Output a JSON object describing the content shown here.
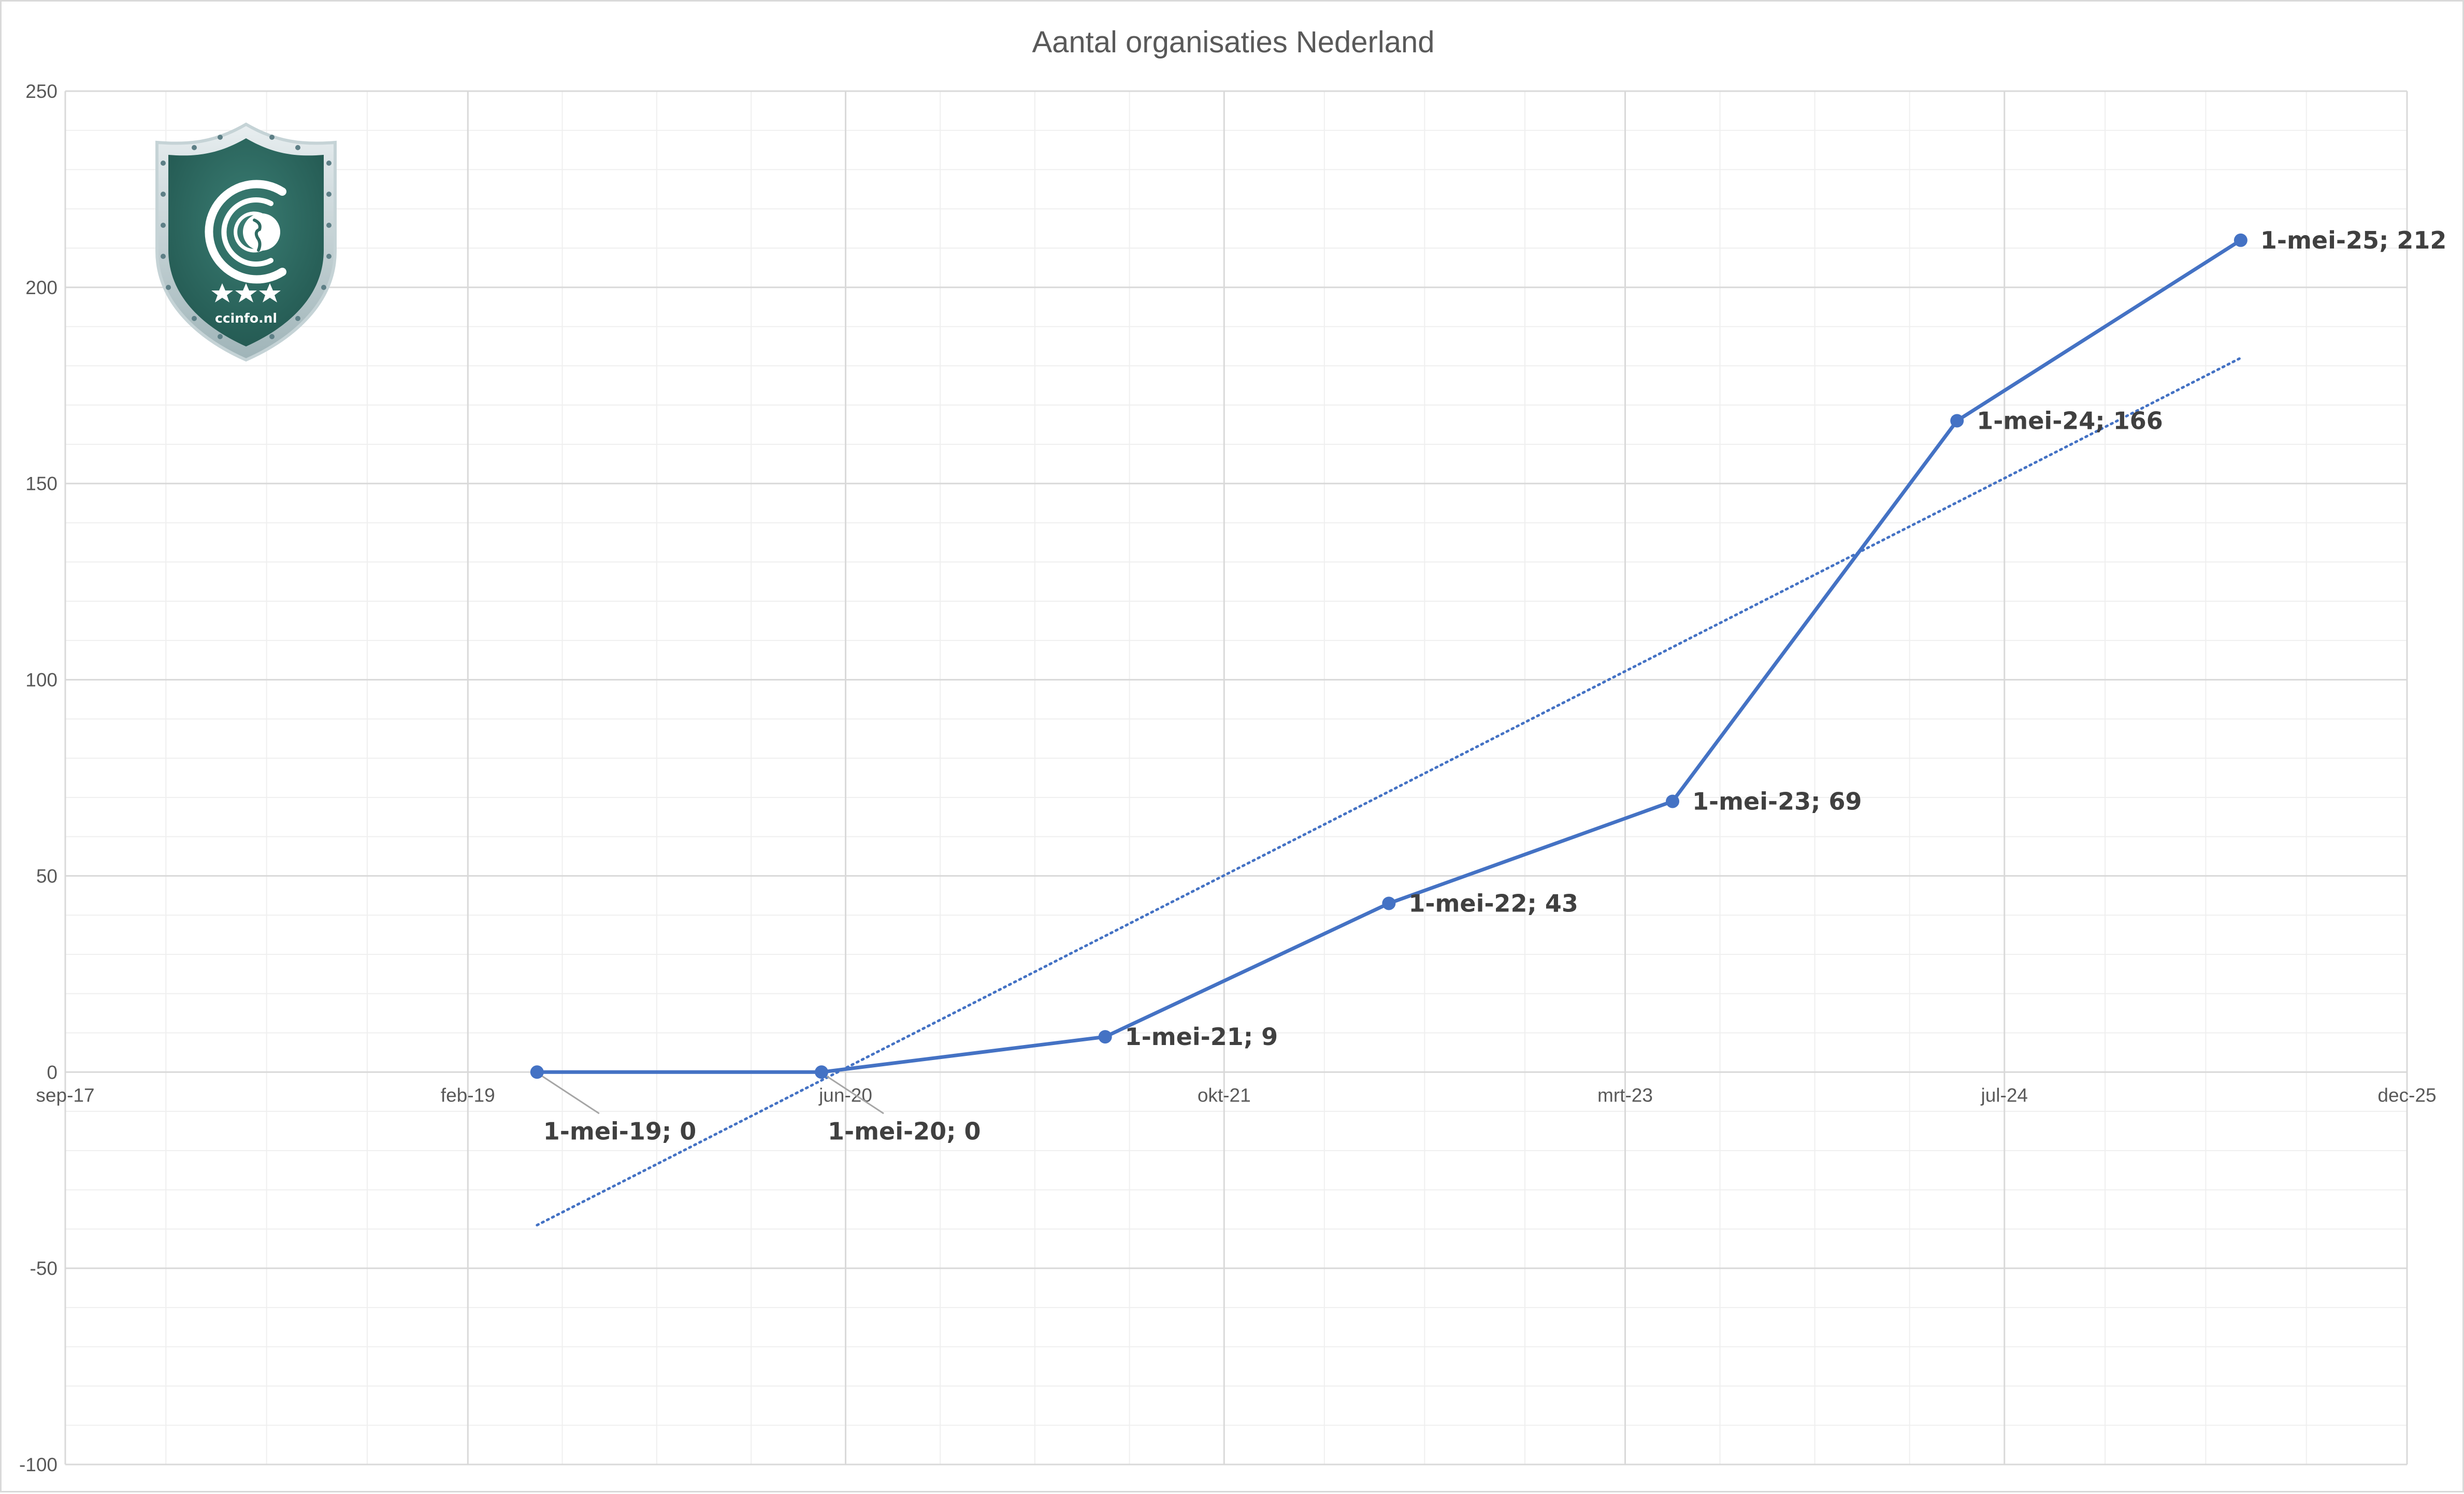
{
  "chart_data": {
    "type": "line",
    "title": "Aantal organisaties Nederland",
    "xlabel": "",
    "ylabel": "",
    "x_ticks": [
      "sep-17",
      "feb-19",
      "jun-20",
      "okt-21",
      "mrt-23",
      "jul-24",
      "dec-25"
    ],
    "x_tick_dates": [
      "2017-09-01",
      "2019-02-01",
      "2020-06-01",
      "2021-10-01",
      "2023-03-01",
      "2024-07-01",
      "2025-12-01"
    ],
    "xlim": [
      "2017-09-01",
      "2025-12-01"
    ],
    "y_ticks": [
      250,
      200,
      150,
      100,
      50,
      0,
      -50,
      -100
    ],
    "ylim": [
      -100,
      250
    ],
    "grid": true,
    "series": [
      {
        "x": [
          "2019-05-01",
          "2020-05-01",
          "2021-05-01",
          "2022-05-01",
          "2023-05-01",
          "2024-05-01",
          "2025-05-01"
        ],
        "values": [
          0,
          0,
          9,
          43,
          69,
          166,
          212
        ],
        "labels": [
          "1-mei-19; 0",
          "1-mei-20; 0",
          "1-mei-21; 9",
          "1-mei-22; 43",
          "1-mei-23; 69",
          "1-mei-24; 166",
          "1-mei-25; 212"
        ],
        "color": "#4472c4"
      }
    ],
    "trendline": {
      "type": "linear",
      "style": "dotted",
      "color": "#4472c4",
      "x": [
        "2019-05-01",
        "2025-05-01"
      ],
      "values": [
        -39,
        182
      ]
    },
    "logo": {
      "text": "ccinfo.nl",
      "color": "#2e6b62"
    }
  }
}
